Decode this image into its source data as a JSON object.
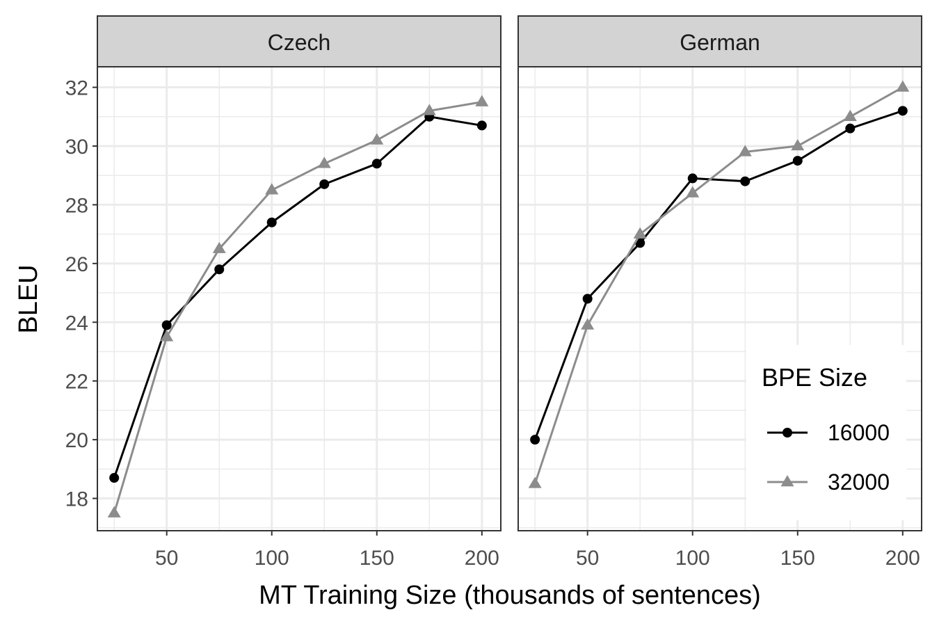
{
  "chart_data": {
    "type": "line",
    "xlabel": "MT Training Size (thousands of sentences)",
    "ylabel": "BLEU",
    "x": [
      25,
      50,
      75,
      100,
      125,
      150,
      175,
      200
    ],
    "xlim": [
      17,
      209
    ],
    "ylim": [
      16.9,
      32.7
    ],
    "x_ticks": [
      50,
      100,
      150,
      200
    ],
    "y_ticks": [
      18,
      20,
      22,
      24,
      26,
      28,
      30,
      32
    ],
    "grid": true,
    "legend": {
      "title": "BPE Size",
      "position": "bottom-right"
    },
    "colors": {
      "16000": "#000000",
      "32000": "#8c8c8c",
      "strip": "#d3d3d3",
      "grid": "#ebebeb"
    },
    "facets": [
      {
        "title": "Czech",
        "series": [
          {
            "name": "16000",
            "marker": "circle",
            "values": [
              18.7,
              23.9,
              25.8,
              27.4,
              28.7,
              29.4,
              31.0,
              30.7
            ]
          },
          {
            "name": "32000",
            "marker": "triangle",
            "values": [
              17.5,
              23.5,
              26.5,
              28.5,
              29.4,
              30.2,
              31.2,
              31.5
            ]
          }
        ]
      },
      {
        "title": "German",
        "series": [
          {
            "name": "16000",
            "marker": "circle",
            "values": [
              20.0,
              24.8,
              26.7,
              28.9,
              28.8,
              29.5,
              30.6,
              31.2
            ]
          },
          {
            "name": "32000",
            "marker": "triangle",
            "values": [
              18.5,
              23.9,
              27.0,
              28.4,
              29.8,
              30.0,
              31.0,
              32.0
            ]
          }
        ]
      }
    ]
  }
}
